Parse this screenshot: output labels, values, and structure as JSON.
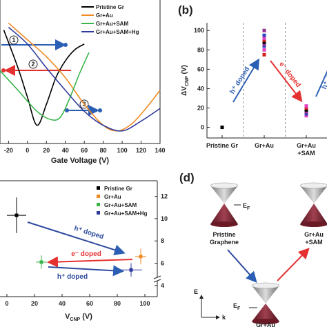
{
  "chart_data": [
    {
      "type": "line",
      "xlabel": "Gate Voltage (V)",
      "xlim": [
        -29,
        140
      ],
      "xticks": [
        -20,
        0,
        20,
        40,
        60,
        80,
        100,
        120,
        140
      ],
      "ylim": [
        0,
        1
      ],
      "series": [
        {
          "name": "Pristine Gr",
          "color": "#000000",
          "x": [
            -25,
            -10,
            0,
            10,
            20,
            30,
            40,
            50,
            60
          ],
          "values": [
            0.81,
            0.54,
            0.33,
            0.13,
            0.28,
            0.47,
            0.59,
            0.67,
            0.71
          ]
        },
        {
          "name": "Gr+Au",
          "color": "#f08a24",
          "x": [
            -20,
            0,
            20,
            40,
            60,
            80,
            95,
            110,
            125,
            140
          ],
          "values": [
            0.86,
            0.74,
            0.62,
            0.47,
            0.28,
            0.13,
            0.09,
            0.14,
            0.25,
            0.38
          ]
        },
        {
          "name": "Gr+Au+SAM",
          "color": "#39b54a",
          "x": [
            -29,
            -10,
            10,
            25,
            35,
            45,
            55,
            65
          ],
          "values": [
            0.52,
            0.38,
            0.23,
            0.17,
            0.19,
            0.33,
            0.5,
            0.65
          ]
        },
        {
          "name": "Gr+Au+SAM+Hg",
          "color": "#2e3a9c",
          "x": [
            -20,
            0,
            20,
            40,
            60,
            80,
            100,
            120,
            140
          ],
          "values": [
            0.83,
            0.71,
            0.54,
            0.38,
            0.23,
            0.13,
            0.09,
            0.16,
            0.25
          ]
        }
      ],
      "annotations": [
        "1",
        "2",
        "3"
      ]
    },
    {
      "type": "category-scatter",
      "panel_label": "(b)",
      "ylabel": {
        "main": "ΔV",
        "sub": "CNP",
        "unit": " (V)"
      },
      "categories": [
        "Pristine Gr",
        "Gr+Au",
        "Gr+Au\n+SAM"
      ],
      "values": [
        [
          0
        ],
        [
          75,
          80,
          84,
          86,
          88,
          90,
          92,
          95,
          100
        ],
        [
          12,
          14,
          16,
          18,
          20,
          22
        ]
      ],
      "colors": [
        "#000000",
        "#d42020",
        "#e040c0",
        "#3040c0",
        "#903090"
      ],
      "ylim": [
        -11,
        108
      ],
      "yticks": [
        0,
        20,
        40,
        60,
        80,
        100
      ],
      "annotations": [
        "h⁺ doped",
        "e⁻ doped",
        "h⁺ doped"
      ]
    },
    {
      "type": "errorbar",
      "xlabel": {
        "main": "V",
        "sub": "CNP",
        "unit": " (V)"
      },
      "xlim": [
        -5,
        109
      ],
      "xticks": [
        0,
        20,
        40,
        60,
        80,
        100
      ],
      "ylim": [
        3,
        13.4
      ],
      "yticks": [
        4,
        6,
        8,
        10,
        12
      ],
      "series": [
        {
          "name": "Pristine Gr",
          "color": "#000000",
          "x": [
            7
          ],
          "values": [
            10.3
          ],
          "xerr": [
            7
          ],
          "yerr": [
            1.6
          ]
        },
        {
          "name": "Gr+Au",
          "color": "#f08a24",
          "x": [
            97
          ],
          "values": [
            6.6
          ],
          "xerr": [
            4
          ],
          "yerr": [
            0.7
          ]
        },
        {
          "name": "Gr+Au+SAM",
          "color": "#39b54a",
          "x": [
            25
          ],
          "values": [
            6.1
          ],
          "xerr": [
            4
          ],
          "yerr": [
            0.6
          ]
        },
        {
          "name": "Gr+Au+SAM+Hg",
          "color": "#2e3a9c",
          "x": [
            90
          ],
          "values": [
            5.4
          ],
          "xerr": [
            8
          ],
          "yerr": [
            0.6
          ]
        }
      ],
      "annotations": [
        "h⁺ doped",
        "e⁻ doped",
        "h⁺ doped"
      ]
    }
  ],
  "diagram": {
    "panel_label": "(d)",
    "nodes": [
      "Pristine\nGraphene",
      "Gr+Au",
      "Gr+Au\n+SAM"
    ],
    "fermi": {
      "main": "E",
      "sub": "F"
    },
    "axes": {
      "y": "E",
      "x": "k"
    }
  }
}
